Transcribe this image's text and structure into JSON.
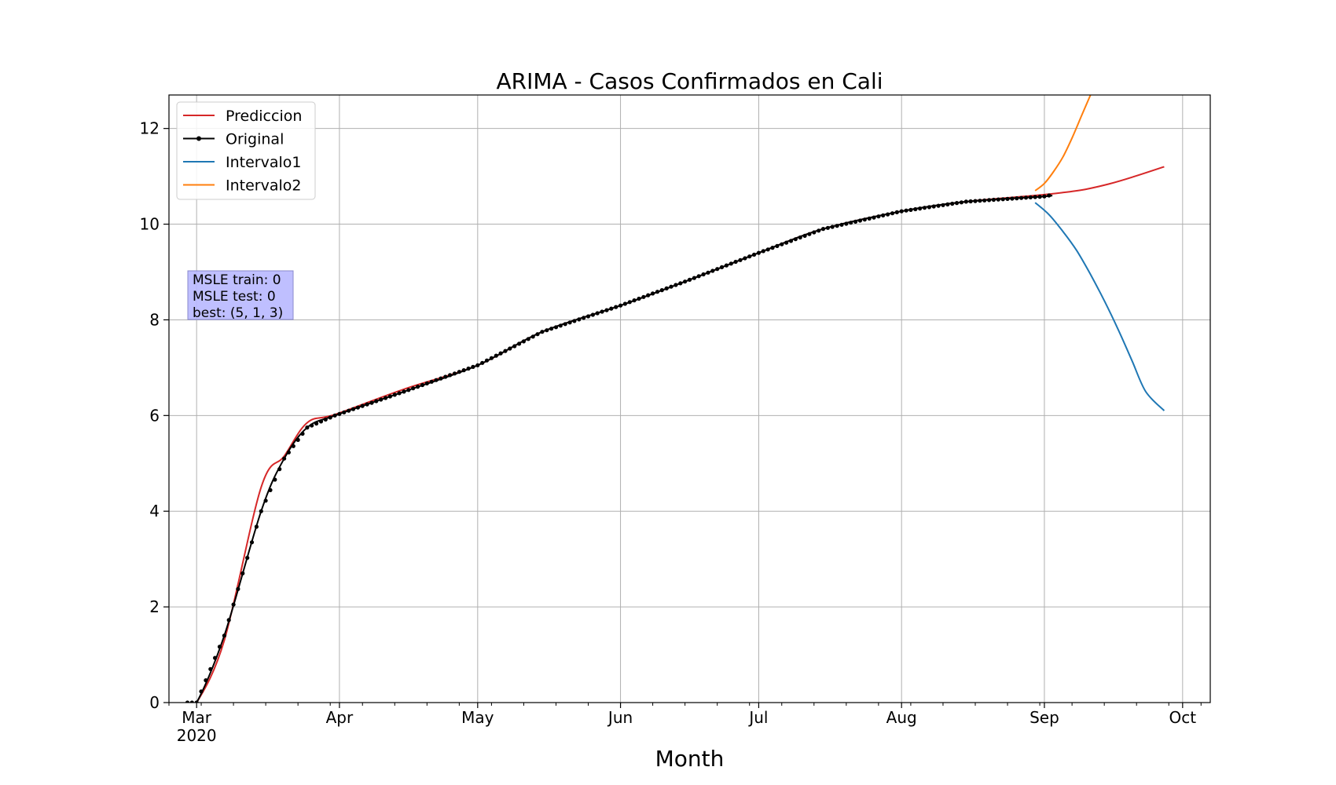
{
  "chart_data": {
    "type": "line",
    "title": "ARIMA - Casos Confirmados en Cali",
    "xlabel": "Month",
    "ylabel": "",
    "x_axis": {
      "type": "date",
      "range": [
        "2020-02-24",
        "2020-10-07"
      ],
      "ticks": [
        {
          "date": "2020-03-01",
          "label": "Mar",
          "sublabel": "2020"
        },
        {
          "date": "2020-04-01",
          "label": "Apr"
        },
        {
          "date": "2020-05-01",
          "label": "May"
        },
        {
          "date": "2020-06-01",
          "label": "Jun"
        },
        {
          "date": "2020-07-01",
          "label": "Jul"
        },
        {
          "date": "2020-08-01",
          "label": "Aug"
        },
        {
          "date": "2020-09-01",
          "label": "Sep"
        },
        {
          "date": "2020-10-01",
          "label": "Oct"
        }
      ]
    },
    "y_axis": {
      "range": [
        0,
        12.7
      ],
      "ticks": [
        0,
        2,
        4,
        6,
        8,
        10,
        12
      ]
    },
    "grid": true,
    "legend": {
      "placement": "top-left",
      "entries": [
        "Prediccion",
        "Original",
        "Intervalo1",
        "Intervalo2"
      ]
    },
    "annotation": {
      "lines": [
        "MSLE train: 0",
        "MSLE test: 0",
        "best: (5, 1, 3)"
      ]
    },
    "series": [
      {
        "name": "Original",
        "color": "#000000",
        "marker": "dot",
        "x": [
          "2020-02-28",
          "2020-03-01",
          "2020-03-07",
          "2020-03-15",
          "2020-03-20",
          "2020-03-25",
          "2020-03-31",
          "2020-04-15",
          "2020-05-01",
          "2020-05-15",
          "2020-06-01",
          "2020-06-15",
          "2020-07-01",
          "2020-07-15",
          "2020-08-01",
          "2020-08-15",
          "2020-09-01",
          "2020-09-02"
        ],
        "y": [
          0,
          0,
          1.4,
          4.0,
          5.1,
          5.75,
          6.0,
          6.5,
          7.05,
          7.75,
          8.3,
          8.8,
          9.4,
          9.9,
          10.27,
          10.47,
          10.58,
          10.6
        ]
      },
      {
        "name": "Prediccion",
        "color": "#d62728",
        "x": [
          "2020-02-28",
          "2020-03-01",
          "2020-03-07",
          "2020-03-15",
          "2020-03-20",
          "2020-03-25",
          "2020-03-31",
          "2020-04-15",
          "2020-05-01",
          "2020-05-15",
          "2020-06-01",
          "2020-06-15",
          "2020-07-01",
          "2020-07-15",
          "2020-08-01",
          "2020-08-15",
          "2020-08-30",
          "2020-09-05",
          "2020-09-10",
          "2020-09-15",
          "2020-09-20",
          "2020-09-27"
        ],
        "y": [
          0,
          0,
          1.3,
          4.5,
          5.15,
          5.85,
          6.02,
          6.55,
          7.05,
          7.75,
          8.3,
          8.8,
          9.4,
          9.9,
          10.27,
          10.47,
          10.6,
          10.66,
          10.73,
          10.84,
          10.98,
          11.2
        ]
      },
      {
        "name": "Intervalo1",
        "color": "#1f77b4",
        "x": [
          "2020-08-30",
          "2020-09-02",
          "2020-09-05",
          "2020-09-08",
          "2020-09-11",
          "2020-09-14",
          "2020-09-17",
          "2020-09-20",
          "2020-09-23",
          "2020-09-27"
        ],
        "y": [
          10.45,
          10.2,
          9.85,
          9.45,
          8.95,
          8.4,
          7.8,
          7.15,
          6.5,
          6.1
        ]
      },
      {
        "name": "Intervalo2",
        "color": "#ff7f0e",
        "x": [
          "2020-08-30",
          "2020-09-01",
          "2020-09-03",
          "2020-09-05",
          "2020-09-07",
          "2020-09-09",
          "2020-09-11"
        ],
        "y": [
          10.7,
          10.85,
          11.1,
          11.4,
          11.8,
          12.25,
          12.7
        ]
      }
    ]
  }
}
